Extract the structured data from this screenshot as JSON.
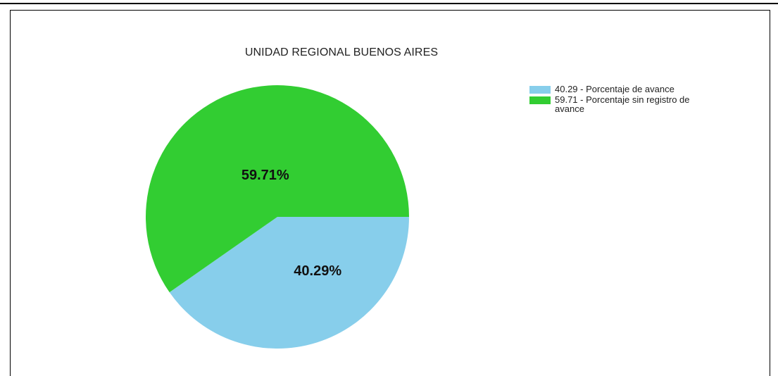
{
  "chart_data": {
    "type": "pie",
    "title": "UNIDAD REGIONAL BUENOS AIRES",
    "slices": [
      {
        "label": "40.29 - Porcentaje de avance",
        "value": 40.29,
        "display": "40.29%",
        "color": "#87CEEB"
      },
      {
        "label": "59.71 - Porcentaje sin registro de avance",
        "value": 59.71,
        "display": "59.71%",
        "color": "#32CD32"
      }
    ],
    "legend_position": "right",
    "start_direction": "right",
    "direction": "clockwise"
  }
}
